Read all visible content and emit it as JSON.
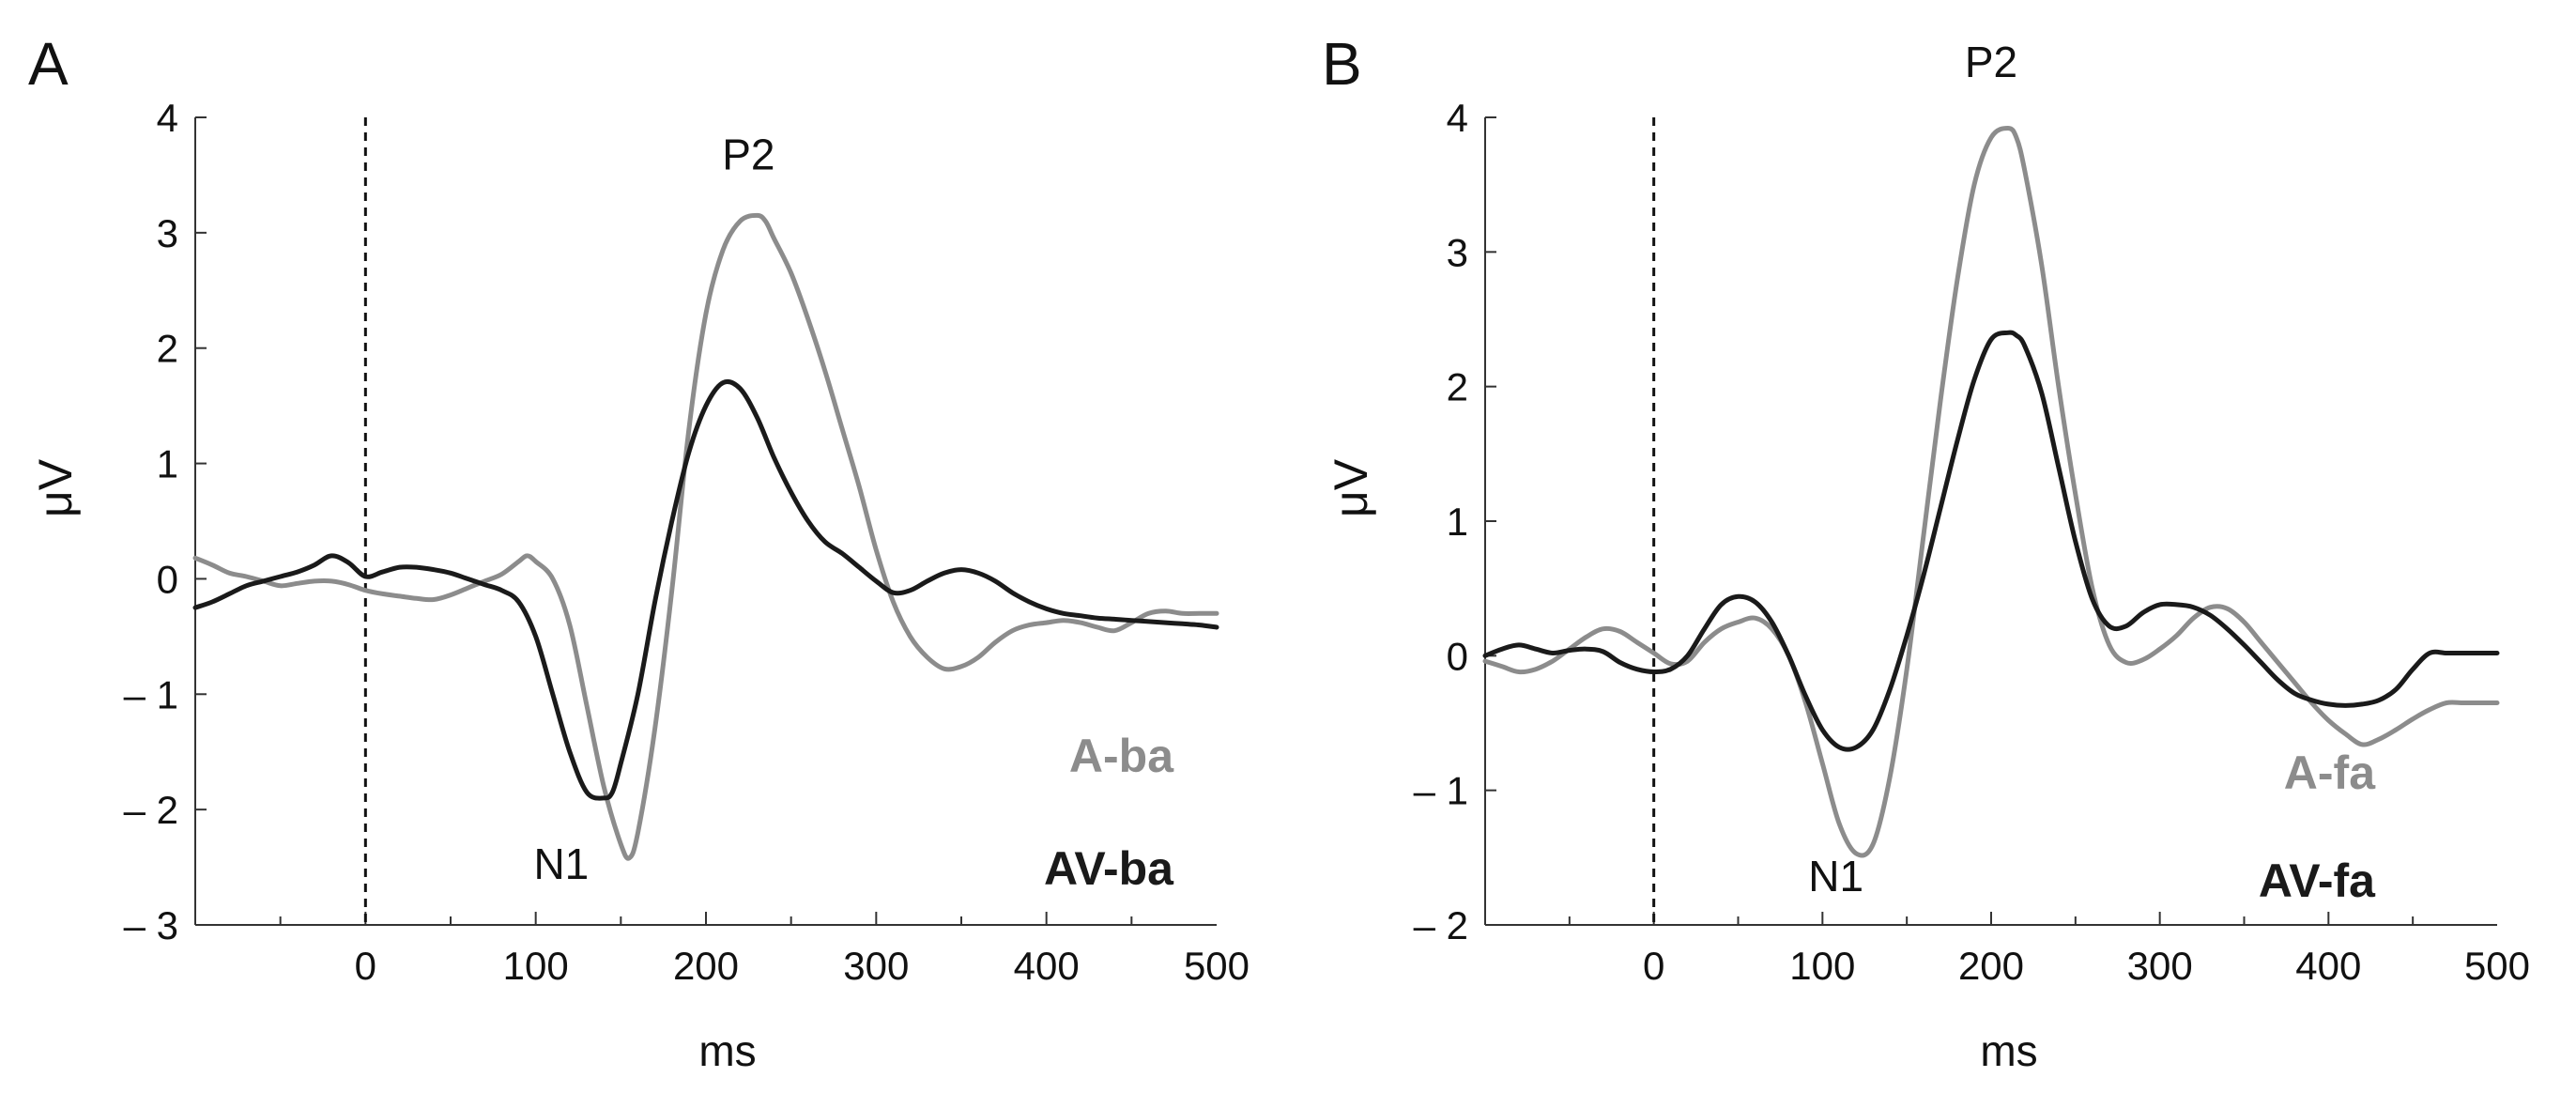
{
  "chart_data": [
    {
      "panel_label": "A",
      "type": "line",
      "xlabel": "ms",
      "ylabel": "μV",
      "xlim": [
        -100,
        500
      ],
      "ylim": [
        -3,
        4
      ],
      "xticks": [
        0,
        100,
        200,
        300,
        400,
        500
      ],
      "xtick_labels": [
        "0",
        "100",
        "200",
        "300",
        "400",
        "500"
      ],
      "yticks": [
        4,
        3,
        2,
        1,
        0,
        -1,
        -2,
        -3
      ],
      "ytick_labels": [
        "4",
        "3",
        "2",
        "1",
        "0",
        "– 1",
        "– 2",
        "– 3"
      ],
      "stimulus_onset_ms": 0,
      "annotations": [
        {
          "text": "P2",
          "x": 225,
          "y": 3.55
        },
        {
          "text": "N1",
          "x": 115,
          "y": -2.6
        }
      ],
      "series": [
        {
          "name": "A-ba",
          "color": "#8c8c8c",
          "x": [
            -100,
            -90,
            -80,
            -70,
            -60,
            -50,
            -40,
            -30,
            -20,
            -10,
            0,
            10,
            20,
            30,
            40,
            50,
            60,
            70,
            80,
            90,
            95,
            100,
            110,
            120,
            130,
            140,
            150,
            155,
            160,
            170,
            180,
            190,
            200,
            210,
            220,
            230,
            235,
            240,
            250,
            260,
            270,
            280,
            290,
            300,
            310,
            320,
            330,
            340,
            350,
            360,
            370,
            380,
            390,
            400,
            410,
            420,
            430,
            440,
            450,
            460,
            470,
            480,
            490,
            500
          ],
          "values": [
            0.18,
            0.12,
            0.05,
            0.02,
            -0.02,
            -0.06,
            -0.04,
            -0.02,
            -0.02,
            -0.05,
            -0.1,
            -0.13,
            -0.15,
            -0.17,
            -0.18,
            -0.14,
            -0.08,
            -0.02,
            0.04,
            0.15,
            0.2,
            0.15,
            0.0,
            -0.4,
            -1.1,
            -1.8,
            -2.3,
            -2.42,
            -2.2,
            -1.3,
            -0.1,
            1.3,
            2.3,
            2.85,
            3.1,
            3.15,
            3.1,
            2.95,
            2.65,
            2.25,
            1.8,
            1.3,
            0.8,
            0.25,
            -0.2,
            -0.5,
            -0.68,
            -0.78,
            -0.76,
            -0.68,
            -0.55,
            -0.45,
            -0.4,
            -0.38,
            -0.36,
            -0.38,
            -0.42,
            -0.45,
            -0.38,
            -0.3,
            -0.28,
            -0.3,
            -0.3,
            -0.3
          ]
        },
        {
          "name": "AV-ba",
          "color": "#1a1a1a",
          "x": [
            -100,
            -90,
            -80,
            -70,
            -60,
            -50,
            -40,
            -30,
            -20,
            -10,
            0,
            10,
            20,
            30,
            40,
            50,
            60,
            70,
            80,
            90,
            100,
            110,
            120,
            130,
            140,
            145,
            150,
            160,
            170,
            180,
            190,
            200,
            210,
            220,
            230,
            240,
            250,
            260,
            270,
            280,
            290,
            300,
            310,
            320,
            330,
            340,
            350,
            360,
            370,
            380,
            390,
            400,
            410,
            420,
            430,
            440,
            450,
            460,
            470,
            480,
            490,
            500
          ],
          "values": [
            -0.25,
            -0.2,
            -0.13,
            -0.06,
            -0.02,
            0.02,
            0.06,
            0.12,
            0.2,
            0.14,
            0.02,
            0.06,
            0.1,
            0.1,
            0.08,
            0.05,
            0.0,
            -0.05,
            -0.1,
            -0.2,
            -0.5,
            -1.0,
            -1.5,
            -1.85,
            -1.9,
            -1.85,
            -1.6,
            -1.0,
            -0.2,
            0.5,
            1.1,
            1.5,
            1.7,
            1.65,
            1.4,
            1.05,
            0.75,
            0.5,
            0.32,
            0.22,
            0.1,
            -0.02,
            -0.12,
            -0.1,
            -0.02,
            0.05,
            0.08,
            0.05,
            -0.02,
            -0.12,
            -0.2,
            -0.26,
            -0.3,
            -0.32,
            -0.34,
            -0.35,
            -0.36,
            -0.37,
            -0.38,
            -0.39,
            -0.4,
            -0.42
          ]
        }
      ]
    },
    {
      "panel_label": "B",
      "type": "line",
      "xlabel": "ms",
      "ylabel": "μV",
      "xlim": [
        -100,
        500
      ],
      "ylim": [
        -2,
        4
      ],
      "xticks": [
        0,
        100,
        200,
        300,
        400,
        500
      ],
      "xtick_labels": [
        "0",
        "100",
        "200",
        "300",
        "400",
        "500"
      ],
      "yticks": [
        4,
        3,
        2,
        1,
        0,
        -1,
        -2
      ],
      "ytick_labels": [
        "4",
        "3",
        "2",
        "1",
        "0",
        "– 1",
        "– 2"
      ],
      "stimulus_onset_ms": 0,
      "annotations": [
        {
          "text": "P2",
          "x": 200,
          "y": 4.3
        },
        {
          "text": "N1",
          "x": 108,
          "y": -1.75
        }
      ],
      "series": [
        {
          "name": "A-fa",
          "color": "#8c8c8c",
          "x": [
            -100,
            -90,
            -80,
            -70,
            -60,
            -50,
            -40,
            -30,
            -20,
            -10,
            0,
            10,
            20,
            30,
            40,
            50,
            60,
            70,
            80,
            90,
            100,
            110,
            120,
            130,
            140,
            150,
            160,
            170,
            180,
            190,
            200,
            210,
            215,
            220,
            230,
            240,
            250,
            260,
            270,
            280,
            290,
            300,
            310,
            320,
            330,
            340,
            350,
            360,
            370,
            380,
            390,
            400,
            410,
            420,
            430,
            440,
            450,
            460,
            470,
            480,
            490,
            500
          ],
          "values": [
            -0.04,
            -0.08,
            -0.12,
            -0.1,
            -0.04,
            0.05,
            0.14,
            0.2,
            0.18,
            0.1,
            0.02,
            -0.06,
            -0.04,
            0.1,
            0.2,
            0.25,
            0.28,
            0.2,
            0.0,
            -0.35,
            -0.8,
            -1.25,
            -1.47,
            -1.4,
            -0.9,
            -0.1,
            0.9,
            1.9,
            2.8,
            3.5,
            3.85,
            3.92,
            3.85,
            3.6,
            2.9,
            2.0,
            1.2,
            0.5,
            0.08,
            -0.05,
            -0.03,
            0.05,
            0.15,
            0.28,
            0.36,
            0.35,
            0.25,
            0.1,
            -0.05,
            -0.2,
            -0.35,
            -0.48,
            -0.58,
            -0.66,
            -0.62,
            -0.55,
            -0.47,
            -0.4,
            -0.35,
            -0.35,
            -0.35,
            -0.35
          ]
        },
        {
          "name": "AV-fa",
          "color": "#1a1a1a",
          "x": [
            -100,
            -90,
            -80,
            -70,
            -60,
            -50,
            -40,
            -30,
            -20,
            -10,
            0,
            10,
            20,
            30,
            40,
            50,
            60,
            70,
            80,
            90,
            100,
            110,
            120,
            130,
            140,
            150,
            160,
            170,
            180,
            190,
            200,
            210,
            215,
            220,
            230,
            240,
            250,
            260,
            270,
            280,
            290,
            300,
            310,
            320,
            330,
            340,
            350,
            360,
            370,
            380,
            390,
            400,
            410,
            420,
            430,
            440,
            450,
            460,
            470,
            480,
            490,
            500
          ],
          "values": [
            0.0,
            0.05,
            0.08,
            0.05,
            0.02,
            0.04,
            0.05,
            0.03,
            -0.05,
            -0.1,
            -0.12,
            -0.1,
            0.0,
            0.2,
            0.38,
            0.44,
            0.4,
            0.25,
            0.0,
            -0.3,
            -0.55,
            -0.68,
            -0.68,
            -0.55,
            -0.25,
            0.15,
            0.6,
            1.1,
            1.6,
            2.05,
            2.35,
            2.4,
            2.38,
            2.3,
            1.95,
            1.4,
            0.85,
            0.42,
            0.22,
            0.22,
            0.32,
            0.38,
            0.38,
            0.36,
            0.3,
            0.2,
            0.08,
            -0.05,
            -0.18,
            -0.28,
            -0.33,
            -0.36,
            -0.37,
            -0.36,
            -0.33,
            -0.25,
            -0.1,
            0.02,
            0.02,
            0.02,
            0.02,
            0.02
          ]
        }
      ]
    }
  ]
}
